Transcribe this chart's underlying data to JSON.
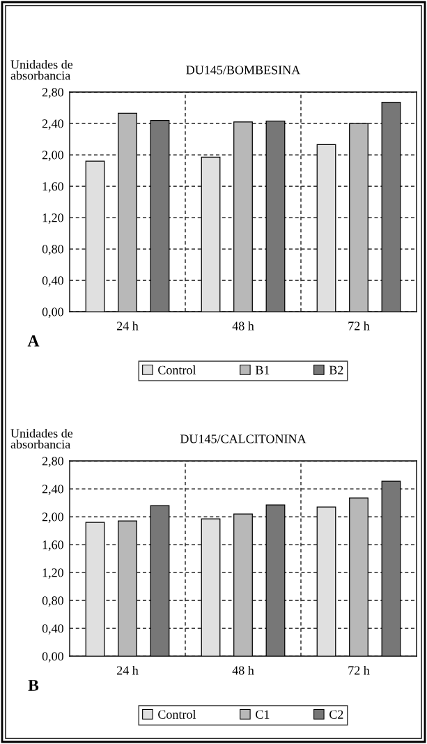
{
  "chart_data": [
    {
      "type": "bar",
      "title": "DU145/BOMBESINA",
      "ylabel": "Unidades de\nabsorbancia",
      "categories": [
        "24 h",
        "48 h",
        "72 h"
      ],
      "series": [
        {
          "name": "Control",
          "color": "#e0e0e0",
          "values": [
            1.92,
            1.97,
            2.13
          ]
        },
        {
          "name": "B1",
          "color": "#b8b8b8",
          "values": [
            2.53,
            2.42,
            2.4
          ]
        },
        {
          "name": "B2",
          "color": "#777777",
          "values": [
            2.44,
            2.43,
            2.67
          ]
        }
      ],
      "ylim": [
        0,
        2.8
      ],
      "yticks": [
        {
          "value": 0,
          "label": "0,00"
        },
        {
          "value": 0.4,
          "label": "0,40"
        },
        {
          "value": 0.8,
          "label": "0,80"
        },
        {
          "value": 1.2,
          "label": "1,20"
        },
        {
          "value": 1.6,
          "label": "1,60"
        },
        {
          "value": 2.0,
          "label": "2,00"
        },
        {
          "value": 2.4,
          "label": "2,40"
        },
        {
          "value": 2.8,
          "label": "2,80"
        }
      ],
      "grid": true,
      "legend": "bottom",
      "annotations": [
        "A"
      ]
    },
    {
      "type": "bar",
      "title": "DU145/CALCITONINA",
      "ylabel": "Unidades de\nabsorbancia",
      "categories": [
        "24 h",
        "48 h",
        "72 h"
      ],
      "series": [
        {
          "name": "Control",
          "color": "#e0e0e0",
          "values": [
            1.92,
            1.97,
            2.14
          ]
        },
        {
          "name": "C1",
          "color": "#b8b8b8",
          "values": [
            1.94,
            2.04,
            2.27
          ]
        },
        {
          "name": "C2",
          "color": "#777777",
          "values": [
            2.16,
            2.17,
            2.51
          ]
        }
      ],
      "ylim": [
        0,
        2.8
      ],
      "yticks": [
        {
          "value": 0,
          "label": "0,00"
        },
        {
          "value": 0.4,
          "label": "0,40"
        },
        {
          "value": 0.8,
          "label": "0,80"
        },
        {
          "value": 1.2,
          "label": "1,20"
        },
        {
          "value": 1.6,
          "label": "1,60"
        },
        {
          "value": 2.0,
          "label": "2,00"
        },
        {
          "value": 2.4,
          "label": "2,40"
        },
        {
          "value": 2.8,
          "label": "2,80"
        }
      ],
      "grid": true,
      "legend": "bottom",
      "annotations": [
        "B"
      ]
    }
  ]
}
